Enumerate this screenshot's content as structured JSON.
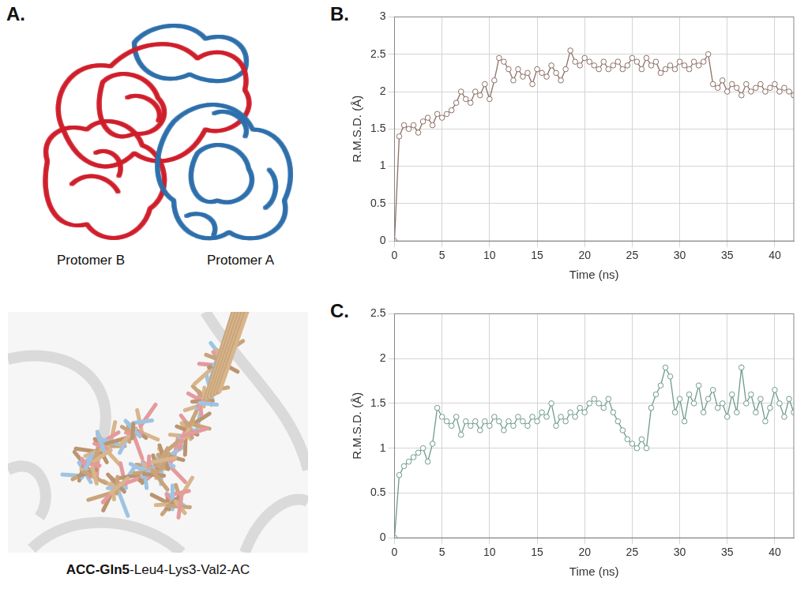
{
  "panel_a": {
    "label": "A.",
    "protomers": [
      "Protomer B",
      "Protomer A"
    ],
    "caption": [
      {
        "text": "ACC-Gln5",
        "bold": true
      },
      {
        "text": "-Leu4-Lys3-Val2-AC",
        "bold": false
      }
    ]
  },
  "chart_data": [
    {
      "panel": "B.",
      "type": "line",
      "x_label": "Time (ns)",
      "y_label": "R.M.S.D. (Å)",
      "color": "#8c6f66",
      "marker": "circle",
      "line_style": "solid",
      "grid": true,
      "xlim": [
        0,
        42
      ],
      "xticks": [
        0,
        5,
        10,
        15,
        20,
        25,
        30,
        35,
        40
      ],
      "ylim": [
        0,
        3
      ],
      "yticks": [
        0,
        0.5,
        1,
        1.5,
        2,
        2.5,
        3
      ],
      "x": [
        0,
        0.5,
        1,
        1.5,
        2,
        2.5,
        3,
        3.5,
        4,
        4.5,
        5,
        5.5,
        6,
        6.5,
        7,
        7.5,
        8,
        8.5,
        9,
        9.5,
        10,
        10.5,
        11,
        11.5,
        12,
        12.5,
        13,
        13.5,
        14,
        14.5,
        15,
        15.5,
        16,
        16.5,
        17,
        17.5,
        18,
        18.5,
        19,
        19.5,
        20,
        20.5,
        21,
        21.5,
        22,
        22.5,
        23,
        23.5,
        24,
        24.5,
        25,
        25.5,
        26,
        26.5,
        27,
        27.5,
        28,
        28.5,
        29,
        29.5,
        30,
        30.5,
        31,
        31.5,
        32,
        32.5,
        33,
        33.5,
        34,
        34.5,
        35,
        35.5,
        36,
        36.5,
        37,
        37.5,
        38,
        38.5,
        39,
        39.5,
        40,
        40.5,
        41,
        41.5,
        42
      ],
      "values": [
        0,
        1.4,
        1.55,
        1.5,
        1.55,
        1.45,
        1.6,
        1.65,
        1.55,
        1.7,
        1.65,
        1.7,
        1.75,
        1.85,
        2.0,
        1.9,
        1.85,
        2.0,
        1.95,
        2.1,
        1.9,
        2.15,
        2.45,
        2.4,
        2.3,
        2.15,
        2.3,
        2.2,
        2.25,
        2.1,
        2.3,
        2.25,
        2.2,
        2.35,
        2.25,
        2.15,
        2.3,
        2.55,
        2.4,
        2.35,
        2.45,
        2.4,
        2.35,
        2.3,
        2.4,
        2.3,
        2.35,
        2.4,
        2.3,
        2.35,
        2.45,
        2.4,
        2.3,
        2.45,
        2.35,
        2.4,
        2.25,
        2.3,
        2.35,
        2.3,
        2.4,
        2.35,
        2.3,
        2.4,
        2.35,
        2.4,
        2.5,
        2.1,
        2.05,
        2.15,
        2.0,
        2.1,
        2.05,
        1.95,
        2.1,
        2.0,
        2.05,
        2.1,
        2.0,
        2.05,
        2.1,
        2.0,
        2.05,
        2.0,
        1.95
      ]
    },
    {
      "panel": "C.",
      "type": "line",
      "x_label": "Time (ns)",
      "y_label": "R.M.S.D. (Å)",
      "color": "#6f9a8e",
      "marker": "circle",
      "line_style": "solid",
      "grid": true,
      "xlim": [
        0,
        42
      ],
      "xticks": [
        0,
        5,
        10,
        15,
        20,
        25,
        30,
        35,
        40
      ],
      "ylim": [
        0,
        2.5
      ],
      "yticks": [
        0,
        0.5,
        1,
        1.5,
        2,
        2.5
      ],
      "x": [
        0,
        0.5,
        1,
        1.5,
        2,
        2.5,
        3,
        3.5,
        4,
        4.5,
        5,
        5.5,
        6,
        6.5,
        7,
        7.5,
        8,
        8.5,
        9,
        9.5,
        10,
        10.5,
        11,
        11.5,
        12,
        12.5,
        13,
        13.5,
        14,
        14.5,
        15,
        15.5,
        16,
        16.5,
        17,
        17.5,
        18,
        18.5,
        19,
        19.5,
        20,
        20.5,
        21,
        21.5,
        22,
        22.5,
        23,
        23.5,
        24,
        24.5,
        25,
        25.5,
        26,
        26.5,
        27,
        27.5,
        28,
        28.5,
        29,
        29.5,
        30,
        30.5,
        31,
        31.5,
        32,
        32.5,
        33,
        33.5,
        34,
        34.5,
        35,
        35.5,
        36,
        36.5,
        37,
        37.5,
        38,
        38.5,
        39,
        39.5,
        40,
        40.5,
        41,
        41.5,
        42
      ],
      "values": [
        0,
        0.7,
        0.8,
        0.85,
        0.9,
        0.95,
        1.0,
        0.85,
        1.05,
        1.45,
        1.35,
        1.3,
        1.25,
        1.35,
        1.15,
        1.3,
        1.25,
        1.3,
        1.2,
        1.3,
        1.25,
        1.35,
        1.3,
        1.2,
        1.3,
        1.25,
        1.35,
        1.3,
        1.25,
        1.35,
        1.3,
        1.4,
        1.35,
        1.5,
        1.25,
        1.35,
        1.3,
        1.4,
        1.35,
        1.45,
        1.4,
        1.5,
        1.55,
        1.5,
        1.45,
        1.55,
        1.4,
        1.3,
        1.2,
        1.1,
        1.05,
        1.0,
        1.1,
        1.0,
        1.45,
        1.6,
        1.7,
        1.9,
        1.8,
        1.4,
        1.55,
        1.3,
        1.6,
        1.5,
        1.7,
        1.4,
        1.55,
        1.65,
        1.45,
        1.5,
        1.35,
        1.6,
        1.4,
        1.9,
        1.5,
        1.6,
        1.4,
        1.55,
        1.3,
        1.45,
        1.65,
        1.5,
        1.35,
        1.55,
        1.4
      ]
    }
  ]
}
